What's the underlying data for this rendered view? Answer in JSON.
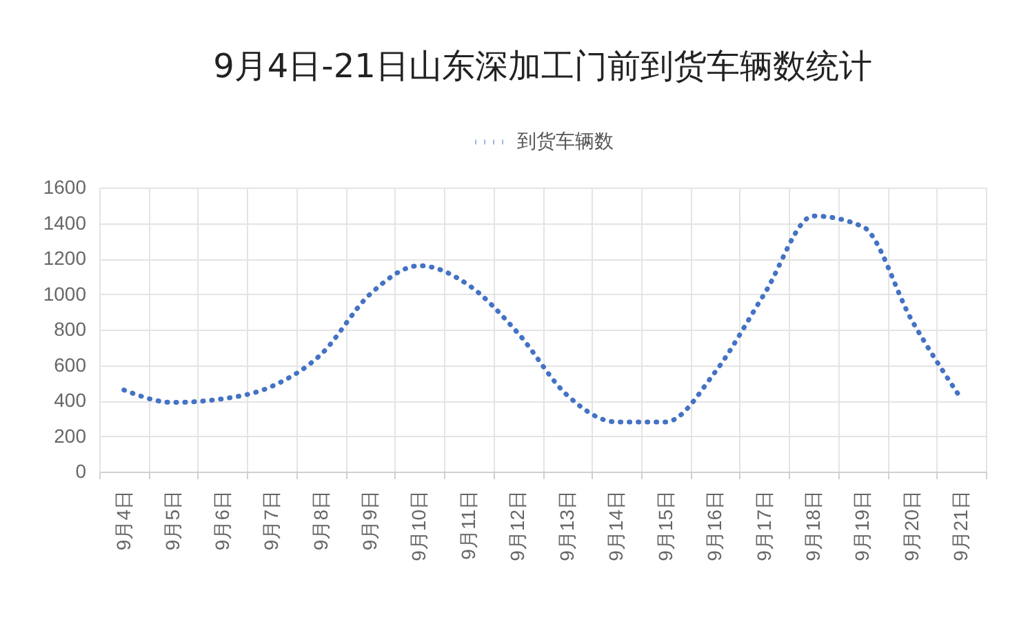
{
  "chart_data": {
    "type": "line",
    "title": "9月4日-21日山东深加工门前到货车辆数统计",
    "categories": [
      "9月4日",
      "9月5日",
      "9月6日",
      "9月7日",
      "9月8日",
      "9月9日",
      "9月10日",
      "9月11日",
      "9月12日",
      "9月13日",
      "9月14日",
      "9月15日",
      "9月16日",
      "9月17日",
      "9月18日",
      "9月19日",
      "9月20日",
      "9月21日"
    ],
    "series": [
      {
        "name": "到货车辆数",
        "color": "#4472c4",
        "values": [
          460,
          390,
          410,
          480,
          660,
          1000,
          1160,
          1050,
          780,
          430,
          280,
          280,
          560,
          1000,
          1440,
          1380,
          850,
          410
        ]
      }
    ],
    "ylim": [
      0,
      1600
    ],
    "yticks": [
      0,
      200,
      400,
      600,
      800,
      1000,
      1200,
      1400,
      1600
    ],
    "grid": true,
    "legend": "top",
    "line_style": "dotted",
    "marker": "none"
  }
}
